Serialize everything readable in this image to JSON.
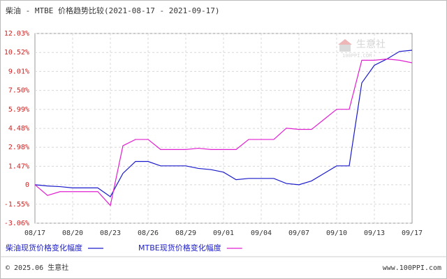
{
  "chart_data": {
    "type": "line",
    "title": "柴油 - MTBE 价格趋势比较(2021-08-17 - 2021-09-17)",
    "categories": [
      "08/17",
      null,
      null,
      "08/20",
      null,
      null,
      "08/23",
      null,
      null,
      "08/26",
      null,
      null,
      "08/29",
      null,
      null,
      "09/01",
      null,
      null,
      "09/04",
      null,
      null,
      "09/07",
      null,
      null,
      "09/10",
      null,
      null,
      "09/13",
      null,
      null,
      "09/17"
    ],
    "series": [
      {
        "name": "柴油现货价格变化幅度",
        "color": "#1a1acc",
        "values": [
          0,
          -0.1,
          -0.15,
          -0.25,
          -0.25,
          -0.25,
          -0.95,
          0.9,
          1.85,
          1.85,
          1.5,
          1.5,
          1.5,
          1.3,
          1.2,
          1.0,
          0.4,
          0.5,
          0.5,
          0.5,
          0.1,
          0,
          0.3,
          0.9,
          1.5,
          1.5,
          8.1,
          9.5,
          10.0,
          10.6,
          10.7
        ]
      },
      {
        "name": "MTBE现货价格变化幅度",
        "color": "#e020d0",
        "values": [
          0,
          -0.85,
          -0.55,
          -0.55,
          -0.55,
          -0.55,
          -1.65,
          3.1,
          3.6,
          3.6,
          2.8,
          2.8,
          2.8,
          2.9,
          2.8,
          2.8,
          2.8,
          3.6,
          3.6,
          3.6,
          4.5,
          4.4,
          4.4,
          5.2,
          6.0,
          6.0,
          9.9,
          9.9,
          10.0,
          9.9,
          9.7
        ]
      }
    ],
    "ylim": [
      -3.06,
      12.03
    ],
    "yticks": [
      {
        "value": 12.03,
        "label": "12.03%"
      },
      {
        "value": 10.52,
        "label": "10.52%"
      },
      {
        "value": 9.01,
        "label": "9.01%"
      },
      {
        "value": 7.5,
        "label": "7.50%"
      },
      {
        "value": 5.99,
        "label": "5.99%"
      },
      {
        "value": 4.48,
        "label": "4.48%"
      },
      {
        "value": 2.98,
        "label": "2.98%"
      },
      {
        "value": 1.47,
        "label": "1.47%"
      },
      0,
      {
        "value": -1.55,
        "label": "-1.55%"
      },
      {
        "value": -3.06,
        "label": "-3.06%"
      }
    ],
    "grid": true,
    "watermark": "生意社",
    "watermark_sub": "100PPI.COM",
    "footer_left": "© 2025.06 生意社",
    "footer_right": "www.100PPI.com"
  }
}
